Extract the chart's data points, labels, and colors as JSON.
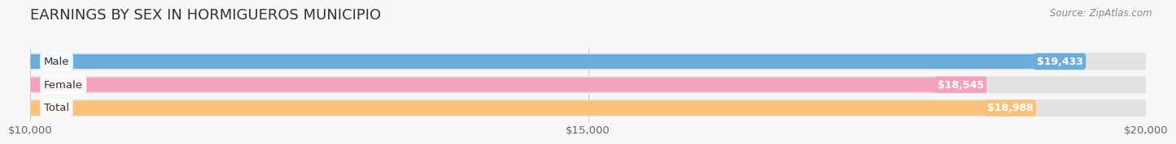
{
  "title": "EARNINGS BY SEX IN HORMIGUEROS MUNICIPIO",
  "source": "Source: ZipAtlas.com",
  "categories": [
    "Male",
    "Female",
    "Total"
  ],
  "values": [
    19433,
    18545,
    18988
  ],
  "labels": [
    "$19,433",
    "$18,545",
    "$18,988"
  ],
  "bar_colors": [
    "#6aaee0",
    "#f4a0be",
    "#f9c17a"
  ],
  "xlim_min": 10000,
  "xlim_max": 20000,
  "xticks": [
    10000,
    15000,
    20000
  ],
  "xtick_labels": [
    "$10,000",
    "$15,000",
    "$20,000"
  ],
  "background_color": "#f7f7f7",
  "bar_bg_color": "#e8e8e8",
  "title_fontsize": 13,
  "label_fontsize": 9.5,
  "value_fontsize": 9,
  "source_fontsize": 8.5
}
